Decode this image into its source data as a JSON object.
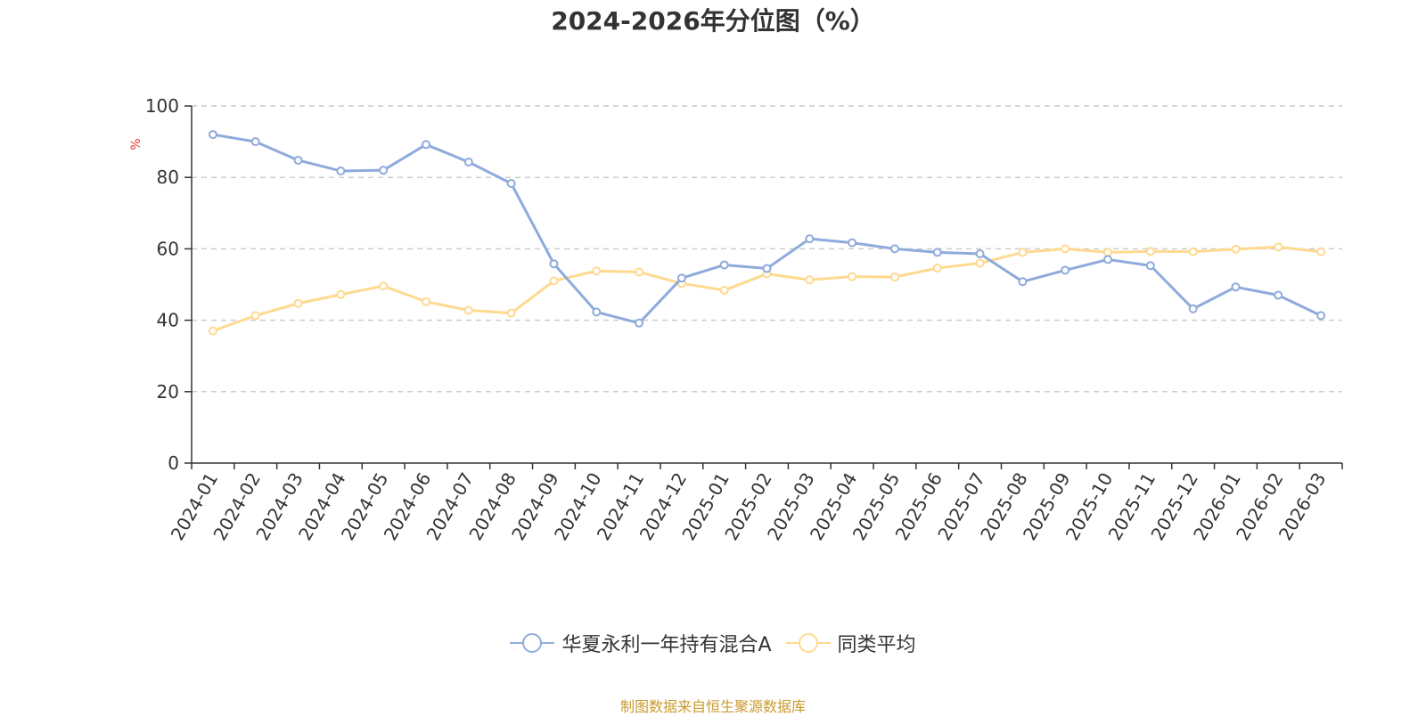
{
  "chart_data": {
    "type": "line",
    "title": "2024-2026年分位图（%）",
    "ylabel": "%",
    "xlabel": "",
    "ylim": [
      0,
      100
    ],
    "yticks": [
      0,
      20,
      40,
      60,
      80,
      100
    ],
    "grid": true,
    "legend_position": "bottom-center",
    "categories": [
      "2024-01",
      "2024-02",
      "2024-03",
      "2024-04",
      "2024-05",
      "2024-06",
      "2024-07",
      "2024-08",
      "2024-09",
      "2024-10",
      "2024-11",
      "2024-12",
      "2025-01",
      "2025-02",
      "2025-03",
      "2025-04",
      "2025-05",
      "2025-06",
      "2025-07",
      "2025-08",
      "2025-09",
      "2025-10",
      "2025-11",
      "2025-12",
      "2026-01",
      "2026-02",
      "2026-03"
    ],
    "series": [
      {
        "name": "华夏永利一年持有混合A",
        "color": "#8faadc",
        "values": [
          92.0,
          90.0,
          84.8,
          81.8,
          82.0,
          89.2,
          84.3,
          78.3,
          55.8,
          42.3,
          39.2,
          51.8,
          55.5,
          54.5,
          62.8,
          61.7,
          60.0,
          59.0,
          58.6,
          50.8,
          54.0,
          57.0,
          55.3,
          43.2,
          49.3,
          47.0,
          41.3
        ]
      },
      {
        "name": "同类平均",
        "color": "#ffd98f",
        "values": [
          37.0,
          41.3,
          44.7,
          47.2,
          49.6,
          45.2,
          42.8,
          42.0,
          51.0,
          53.8,
          53.5,
          50.3,
          48.4,
          53.0,
          51.3,
          52.2,
          52.1,
          54.6,
          56.0,
          59.0,
          60.0,
          59.0,
          59.3,
          59.2,
          59.9,
          60.5,
          59.2
        ]
      }
    ]
  },
  "source_note": "制图数据来自恒生聚源数据库"
}
